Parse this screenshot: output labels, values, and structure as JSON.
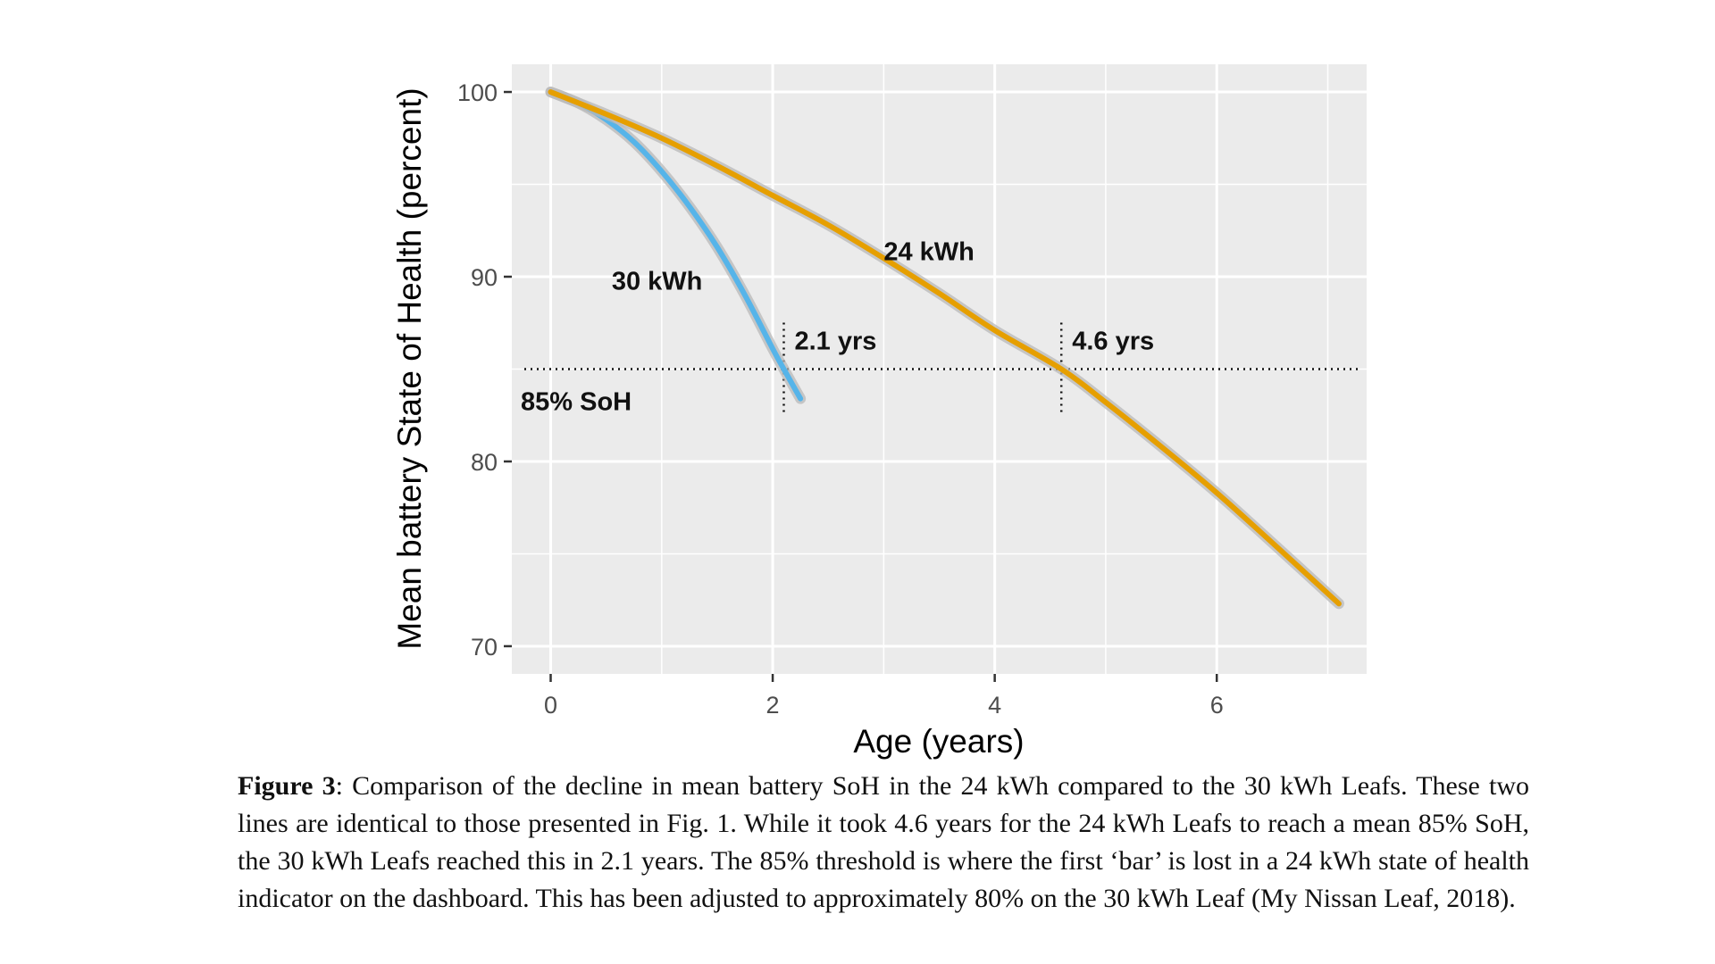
{
  "chart_data": {
    "type": "line",
    "xlabel": "Age (years)",
    "ylabel": "Mean battery State of Health (percent)",
    "xlim": [
      -0.35,
      7.35
    ],
    "ylim": [
      68.5,
      101.5
    ],
    "xticks": [
      0,
      2,
      4,
      6
    ],
    "yticks": [
      70,
      80,
      90,
      100
    ],
    "grid": true,
    "legend": "none",
    "series": [
      {
        "name": "30 kWh",
        "color": "#56B4E9",
        "x": [
          0,
          0.25,
          0.5,
          0.75,
          1.0,
          1.25,
          1.5,
          1.75,
          2.0,
          2.1,
          2.25
        ],
        "y": [
          100,
          99.4,
          98.5,
          97.3,
          95.7,
          93.8,
          91.6,
          89.0,
          86.1,
          85.0,
          83.4
        ]
      },
      {
        "name": "24 kWh",
        "color": "#E69F00",
        "x": [
          0,
          0.5,
          1.0,
          1.5,
          2.0,
          2.5,
          3.0,
          3.5,
          4.0,
          4.6,
          5.0,
          5.5,
          6.0,
          6.5,
          7.1
        ],
        "y": [
          100,
          98.8,
          97.5,
          96.0,
          94.4,
          92.8,
          91.0,
          89.1,
          87.1,
          85.0,
          83.2,
          80.8,
          78.3,
          75.6,
          72.3
        ]
      }
    ],
    "threshold": {
      "y": 85,
      "label": "85% SoH"
    },
    "markers": [
      {
        "x": 2.1,
        "label": "2.1 yrs"
      },
      {
        "x": 4.6,
        "label": "4.6 yrs"
      }
    ]
  },
  "caption": {
    "label": "Figure 3",
    "text": ": Comparison of the decline in mean battery SoH in the 24 kWh compared to the 30 kWh Leafs.  These two lines are identical to those presented in Fig. 1.  While it took 4.6 years for the 24 kWh Leafs to reach a mean 85% SoH, the 30 kWh Leafs reached this in 2.1 years.  The 85% threshold is where the first ‘bar’ is lost in a 24 kWh state of health indicator on the dashboard.  This has been adjusted to approximately 80% on the 30 kWh Leaf (My Nissan Leaf, 2018)."
  }
}
